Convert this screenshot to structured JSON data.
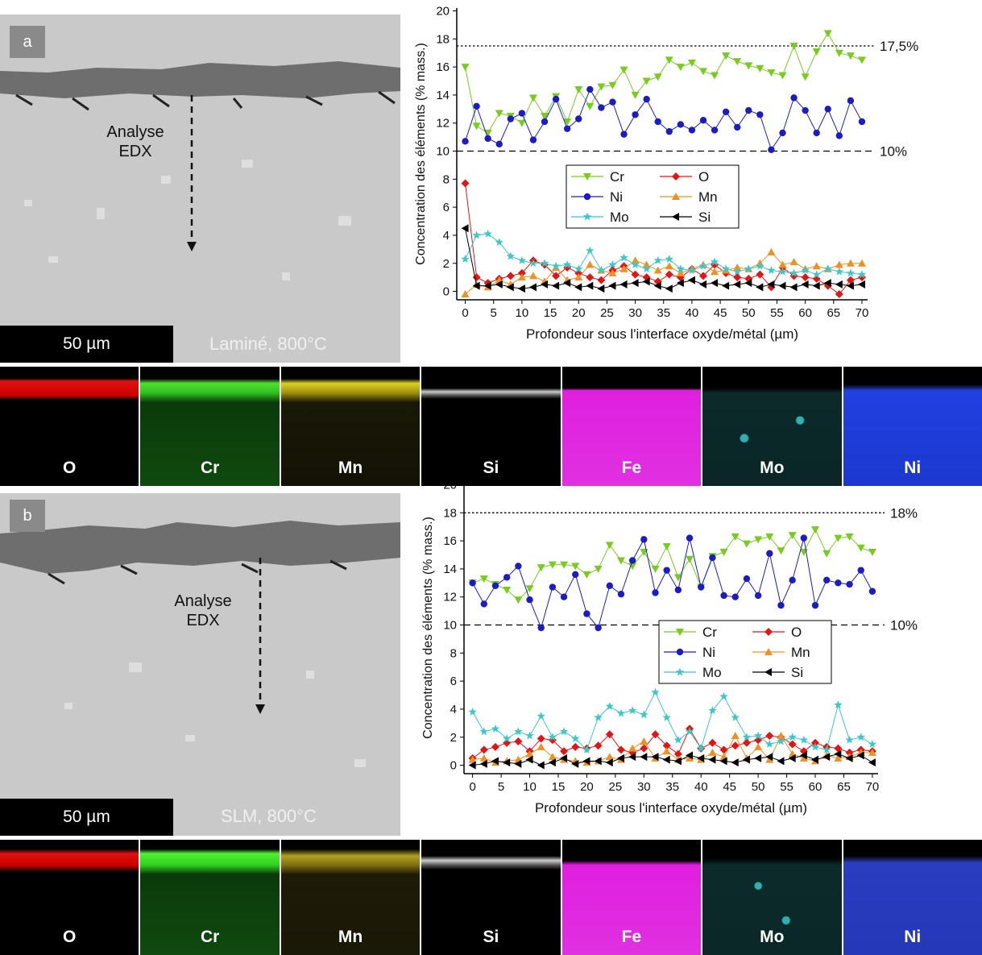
{
  "panels": [
    {
      "label": "a",
      "image": {
        "annotation": [
          "Analyse",
          "EDX"
        ],
        "scale_bar": "50 µm",
        "condition": "Laminé, 800°C"
      },
      "maps": [
        "O",
        "Cr",
        "Mn",
        "Si",
        "Fe",
        "Mo",
        "Ni"
      ]
    },
    {
      "label": "b",
      "image": {
        "annotation": [
          "Analyse",
          "EDX"
        ],
        "scale_bar": "50 µm",
        "condition": "SLM, 800°C"
      },
      "maps": [
        "O",
        "Cr",
        "Mn",
        "Si",
        "Fe",
        "Mo",
        "Ni"
      ]
    }
  ],
  "chart_data": [
    {
      "type": "line",
      "xlabel": "Profondeur sous l'interface oxyde/métal (µm)",
      "ylabel": "Concentration des éléments (% mass.)",
      "xlim": [
        -1.5,
        71
      ],
      "ylim": [
        -0.6,
        20.2
      ],
      "xticks": [
        0,
        5,
        10,
        15,
        20,
        25,
        30,
        35,
        40,
        45,
        50,
        55,
        60,
        65,
        70
      ],
      "yticks": [
        0,
        2,
        4,
        6,
        8,
        10,
        12,
        14,
        16,
        18,
        20
      ],
      "reference_lines": [
        {
          "value": 17.5,
          "label": "17,5%"
        },
        {
          "value": 10,
          "label": "10%"
        }
      ],
      "x": [
        0,
        2,
        4,
        6,
        8,
        10,
        12,
        14,
        16,
        18,
        20,
        22,
        24,
        26,
        28,
        30,
        32,
        34,
        36,
        38,
        40,
        42,
        44,
        46,
        48,
        50,
        52,
        54,
        56,
        58,
        60,
        62,
        64,
        66,
        68,
        70
      ],
      "series": [
        {
          "name": "Cr",
          "color": "#78cc1c",
          "marker": "triangle-down",
          "values": [
            16,
            11.8,
            11.3,
            12.7,
            12.5,
            12,
            13.8,
            12.5,
            13.9,
            12.1,
            14.4,
            13.2,
            14.6,
            14.7,
            15.8,
            14,
            15,
            15.3,
            16.5,
            16,
            16.3,
            15.7,
            15.4,
            16.8,
            16.4,
            16.1,
            15.9,
            15.6,
            15.4,
            17.5,
            15.3,
            17.1,
            18.4,
            17,
            16.8,
            16.5
          ]
        },
        {
          "name": "O",
          "color": "#e41414",
          "marker": "diamond",
          "values": [
            7.7,
            1.0,
            0.6,
            0.9,
            1.1,
            1.3,
            2.2,
            1.9,
            1.1,
            1.7,
            1.3,
            1.0,
            0.8,
            1.5,
            1.8,
            1.2,
            1.0,
            0.7,
            1.2,
            1.0,
            1.6,
            1.1,
            1.9,
            1.3,
            1.0,
            0.9,
            1.2,
            0.3,
            1.7,
            1.1,
            1.0,
            0.9,
            0.4,
            -0.2,
            0.8,
            1.0
          ]
        },
        {
          "name": "Ni",
          "color": "#1c1cc4",
          "marker": "circle",
          "values": [
            10.7,
            13.2,
            10.9,
            10.5,
            12.3,
            12.7,
            10.8,
            12.1,
            13.7,
            11.6,
            12.3,
            14.4,
            13.1,
            13.5,
            11.2,
            12.6,
            13.7,
            12.1,
            11.4,
            11.9,
            11.5,
            12.2,
            11.5,
            12.8,
            11.7,
            12.9,
            12.6,
            10.1,
            11.3,
            13.8,
            12.9,
            11.3,
            13.0,
            11.1,
            13.6,
            12.1
          ]
        },
        {
          "name": "Mn",
          "color": "#f09020",
          "marker": "triangle-up",
          "values": [
            -0.2,
            0.5,
            0.3,
            0.8,
            0.5,
            1.0,
            1.1,
            0.7,
            1.7,
            0.8,
            1.0,
            1.9,
            1.5,
            1.3,
            1.6,
            2.2,
            1.9,
            1.5,
            1.8,
            1.3,
            1.6,
            1.9,
            1.4,
            1.5,
            1.7,
            1.6,
            2.0,
            2.8,
            1.9,
            2.1,
            1.6,
            1.8,
            1.6,
            1.9,
            2.0,
            2.0
          ]
        },
        {
          "name": "Mo",
          "color": "#3cc8c8",
          "marker": "star",
          "values": [
            2.3,
            4.0,
            4.1,
            3.5,
            2.5,
            2.2,
            2.0,
            2.0,
            1.8,
            1.9,
            1.6,
            2.9,
            1.5,
            1.9,
            2.4,
            1.9,
            1.6,
            2.2,
            2.3,
            1.6,
            1.5,
            1.8,
            2.1,
            1.6,
            1.4,
            1.6,
            1.8,
            1.5,
            1.4,
            1.3,
            1.5,
            1.2,
            1.6,
            1.4,
            1.3,
            1.2
          ]
        },
        {
          "name": "Si",
          "color": "#000000",
          "marker": "triangle-left",
          "values": [
            4.5,
            0.4,
            0.4,
            0.5,
            0.3,
            0.2,
            0.3,
            0.5,
            0.4,
            0.6,
            0.3,
            0.4,
            0.2,
            0.4,
            0.5,
            0.6,
            0.7,
            0.4,
            0.2,
            0.6,
            0.8,
            0.5,
            0.6,
            0.4,
            0.5,
            0.6,
            0.3,
            0.5,
            0.4,
            0.3,
            0.5,
            0.4,
            0.6,
            0.5,
            0.4,
            0.5
          ]
        }
      ]
    },
    {
      "type": "line",
      "xlabel": "Profondeur sous l'interface oxyde/métal (µm)",
      "ylabel": "Concentration des éléments (% mass.)",
      "xlim": [
        -1.5,
        71
      ],
      "ylim": [
        -0.6,
        20.2
      ],
      "xticks": [
        0,
        5,
        10,
        15,
        20,
        25,
        30,
        35,
        40,
        45,
        50,
        55,
        60,
        65,
        70
      ],
      "yticks": [
        0,
        2,
        4,
        6,
        8,
        10,
        12,
        14,
        16,
        18,
        20
      ],
      "reference_lines": [
        {
          "value": 18,
          "label": "18%"
        },
        {
          "value": 10,
          "label": "10%"
        }
      ],
      "x": [
        0,
        2,
        4,
        6,
        8,
        10,
        12,
        14,
        16,
        18,
        20,
        22,
        24,
        26,
        28,
        30,
        32,
        34,
        36,
        38,
        40,
        42,
        44,
        46,
        48,
        50,
        52,
        54,
        56,
        58,
        60,
        62,
        64,
        66,
        68,
        70
      ],
      "series": [
        {
          "name": "Cr",
          "color": "#78cc1c",
          "marker": "triangle-down",
          "values": [
            13,
            13.3,
            12.9,
            12.5,
            11.8,
            12.6,
            14.1,
            14.3,
            14.3,
            14.2,
            13.6,
            14.0,
            15.7,
            14.6,
            14.2,
            15.2,
            14.0,
            15.6,
            13.4,
            14.7,
            12.7,
            14.9,
            15.2,
            16.3,
            15.8,
            16.1,
            16.3,
            15.3,
            16.4,
            15.2,
            16.8,
            15.1,
            16.2,
            16.3,
            15.5,
            15.2
          ]
        },
        {
          "name": "O",
          "color": "#e41414",
          "marker": "diamond",
          "values": [
            0.5,
            1.1,
            1.3,
            1.6,
            1.7,
            1.0,
            1.9,
            1.8,
            1.0,
            1.3,
            1.2,
            1.4,
            2.2,
            1.1,
            0.9,
            1.2,
            2.2,
            1.4,
            0.8,
            2.6,
            1.2,
            1.6,
            1.1,
            1.4,
            1.6,
            1.8,
            2.1,
            2.0,
            1.5,
            1.0,
            1.6,
            1.3,
            1.2,
            0.9,
            1.1,
            1.0
          ]
        },
        {
          "name": "Ni",
          "color": "#1c1cc4",
          "marker": "circle",
          "values": [
            13,
            11.5,
            12.8,
            13.4,
            14.2,
            11.8,
            9.8,
            12.7,
            12.0,
            13.6,
            10.8,
            9.8,
            12.8,
            12.2,
            14.6,
            16.1,
            12.3,
            13.9,
            12.5,
            16.2,
            12.7,
            14.8,
            12.1,
            12.0,
            13.3,
            12.1,
            15.1,
            11.4,
            13.2,
            16.2,
            11.4,
            13.2,
            13.0,
            12.9,
            13.9,
            12.4
          ]
        },
        {
          "name": "Mn",
          "color": "#f09020",
          "marker": "triangle-up",
          "values": [
            0.4,
            0.5,
            0.2,
            0.3,
            0.4,
            0.8,
            1.3,
            0.6,
            0.4,
            0.3,
            0.2,
            0.3,
            0.6,
            0.4,
            1.2,
            1.7,
            0.5,
            1.0,
            0.4,
            0.5,
            0.4,
            0.9,
            0.6,
            2.1,
            0.5,
            1.3,
            0.4,
            2.1,
            0.8,
            0.5,
            0.3,
            0.7,
            0.5,
            0.6,
            0.9,
            0.9
          ]
        },
        {
          "name": "Mo",
          "color": "#3cc8c8",
          "marker": "star",
          "values": [
            3.8,
            2.4,
            2.6,
            1.9,
            2.4,
            2.1,
            3.5,
            2.0,
            2.4,
            1.9,
            1.1,
            3.4,
            4.2,
            3.7,
            3.9,
            3.6,
            5.2,
            3.4,
            1.8,
            2.4,
            1.2,
            3.9,
            4.9,
            3.4,
            2.0,
            2.1,
            1.5,
            1.7,
            2.0,
            1.8,
            1.3,
            1.1,
            4.3,
            1.8,
            2.0,
            1.5
          ]
        },
        {
          "name": "Si",
          "color": "#000000",
          "marker": "triangle-left",
          "values": [
            0.0,
            0.1,
            0.3,
            0.2,
            0.1,
            0.4,
            0.0,
            0.2,
            0.5,
            0.1,
            0.3,
            0.3,
            0.2,
            0.5,
            0.6,
            0.6,
            0.6,
            0.4,
            0.3,
            0.7,
            0.5,
            0.4,
            0.3,
            0.2,
            0.4,
            0.5,
            0.6,
            0.3,
            0.5,
            0.7,
            0.4,
            0.6,
            0.8,
            0.5,
            0.7,
            0.2
          ]
        }
      ]
    }
  ]
}
